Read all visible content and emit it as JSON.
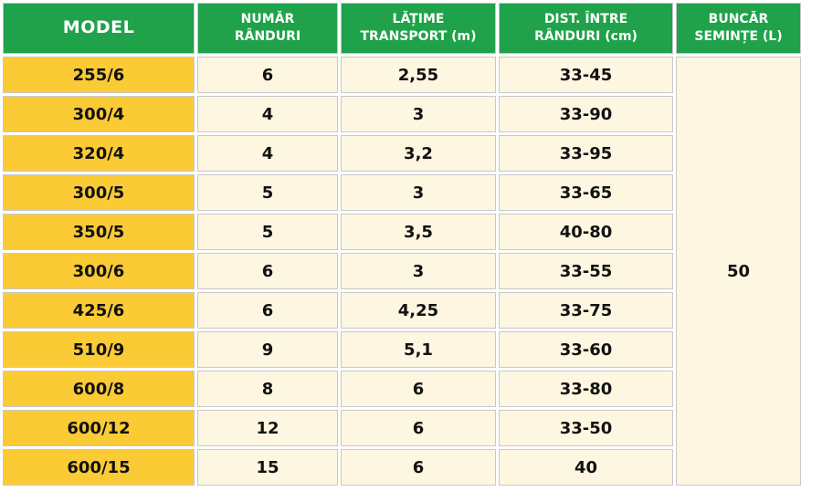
{
  "table": {
    "headers": {
      "model": "MODEL",
      "rows_count": [
        "NUMĂR",
        "RÂNDURI"
      ],
      "transport_width": [
        "LĂȚIME",
        "TRANSPORT (m)"
      ],
      "row_spacing": [
        "DIST. ÎNTRE",
        "RÂNDURI (cm)"
      ],
      "seed_hopper": [
        "BUNCĂR",
        "SEMINȚE (L)"
      ]
    },
    "rows": [
      {
        "model": "255/6",
        "rows_count": "6",
        "transport_width": "2,55",
        "row_spacing": "33-45"
      },
      {
        "model": "300/4",
        "rows_count": "4",
        "transport_width": "3",
        "row_spacing": "33-90"
      },
      {
        "model": "320/4",
        "rows_count": "4",
        "transport_width": "3,2",
        "row_spacing": "33-95"
      },
      {
        "model": "300/5",
        "rows_count": "5",
        "transport_width": "3",
        "row_spacing": "33-65"
      },
      {
        "model": "350/5",
        "rows_count": "5",
        "transport_width": "3,5",
        "row_spacing": "40-80"
      },
      {
        "model": "300/6",
        "rows_count": "6",
        "transport_width": "3",
        "row_spacing": "33-55"
      },
      {
        "model": "425/6",
        "rows_count": "6",
        "transport_width": "4,25",
        "row_spacing": "33-75"
      },
      {
        "model": "510/9",
        "rows_count": "9",
        "transport_width": "5,1",
        "row_spacing": "33-60"
      },
      {
        "model": "600/8",
        "rows_count": "8",
        "transport_width": "6",
        "row_spacing": "33-80"
      },
      {
        "model": "600/12",
        "rows_count": "12",
        "transport_width": "6",
        "row_spacing": "33-50"
      },
      {
        "model": "600/15",
        "rows_count": "15",
        "transport_width": "6",
        "row_spacing": "40"
      }
    ],
    "seed_hopper_value": "50"
  },
  "colors": {
    "header_green": "#1fa24a",
    "model_yellow": "#fbcb35",
    "cell_cream": "#fdf6e0"
  }
}
